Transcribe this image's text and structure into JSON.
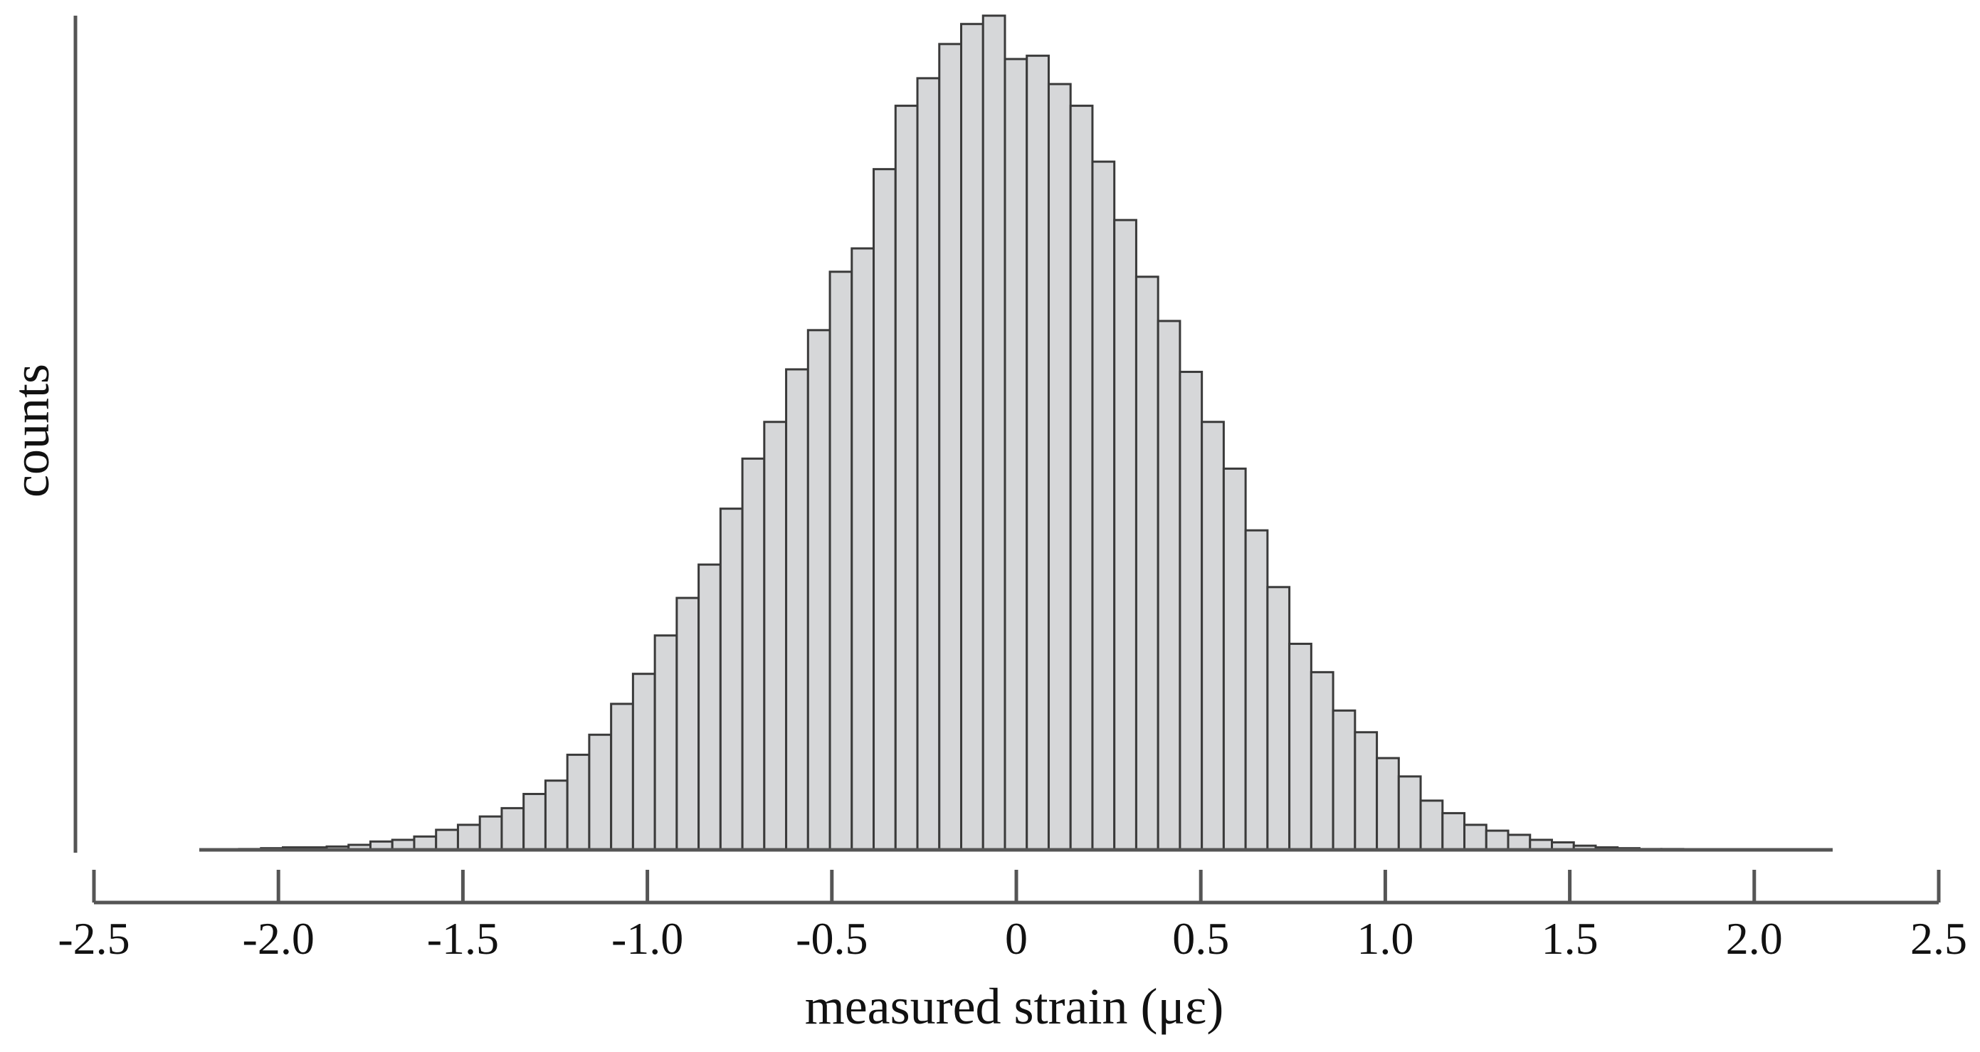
{
  "chart_data": {
    "type": "bar",
    "title": "",
    "xlabel": "measured strain (με)",
    "ylabel": "counts",
    "xlim": [
      -2.5,
      2.5
    ],
    "ylim": [
      0,
      1
    ],
    "x_ticks": [
      -2.5,
      -2.0,
      -1.5,
      -1.0,
      -0.5,
      0,
      0.5,
      1.0,
      1.5,
      2.0,
      2.5
    ],
    "x_tick_labels": [
      "-2.5",
      "-2.0",
      "-1.5",
      "-1.0",
      "-0.5",
      "0",
      "0.5",
      "1.0",
      "1.5",
      "2.0",
      "2.5"
    ],
    "bin_start": -2.225,
    "bin_width": 0.0593,
    "values": [
      0.0,
      0.0,
      0.001,
      0.002,
      0.003,
      0.003,
      0.004,
      0.006,
      0.01,
      0.012,
      0.016,
      0.024,
      0.03,
      0.04,
      0.05,
      0.067,
      0.083,
      0.114,
      0.138,
      0.175,
      0.211,
      0.257,
      0.302,
      0.342,
      0.409,
      0.469,
      0.513,
      0.576,
      0.623,
      0.693,
      0.721,
      0.816,
      0.892,
      0.925,
      0.966,
      0.99,
      1.0,
      0.948,
      0.952,
      0.918,
      0.892,
      0.825,
      0.755,
      0.687,
      0.634,
      0.573,
      0.513,
      0.457,
      0.383,
      0.315,
      0.247,
      0.213,
      0.167,
      0.141,
      0.11,
      0.088,
      0.059,
      0.044,
      0.03,
      0.023,
      0.018,
      0.012,
      0.009,
      0.005,
      0.003,
      0.002,
      0.001,
      0.001,
      0.0
    ]
  }
}
